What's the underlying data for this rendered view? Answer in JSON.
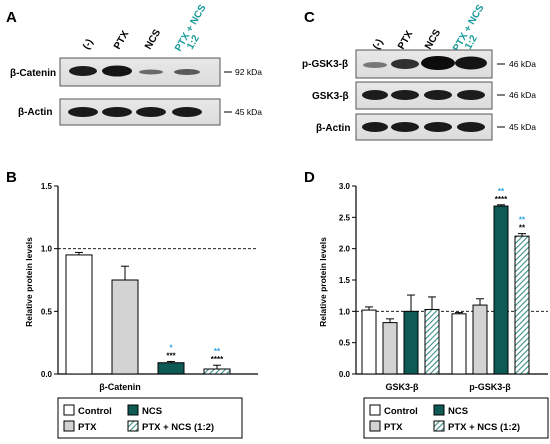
{
  "panels": {
    "a": "A",
    "b": "B",
    "c": "C",
    "d": "D"
  },
  "blot_a": {
    "lanes": [
      "(-)",
      "PTX",
      "NCS",
      "PTX + NCS",
      "1:2"
    ],
    "rows": [
      {
        "label": "β-Catenin",
        "kda": "92 kDa"
      },
      {
        "label": "β-Actin",
        "kda": "45 kDa"
      }
    ]
  },
  "blot_c": {
    "lanes": [
      "(-)",
      "PTX",
      "NCS",
      "PTX + NCS",
      "1:2"
    ],
    "rows": [
      {
        "label": "p-GSK3-β",
        "kda": "46 kDa"
      },
      {
        "label": "GSK3-β",
        "kda": "46 kDa"
      },
      {
        "label": "β-Actin",
        "kda": "45 kDa"
      }
    ]
  },
  "colors": {
    "control": "#ffffff",
    "ptx": "#d3d3d3",
    "ncs": "#0e5b55",
    "combo_hatch": "#3d8e88",
    "sig_blue": "#29a3e0"
  },
  "chart_data": [
    {
      "type": "bar",
      "panel": "B",
      "categories": [
        "β-Catenin"
      ],
      "ylabel": "Relative protein levels",
      "ylim": [
        0,
        1.5
      ],
      "yticks": [
        "0.0",
        "0.5",
        "1.0",
        "1.5"
      ],
      "reference_line": 1.0,
      "series": [
        {
          "name": "Control",
          "values": [
            0.95
          ],
          "err": [
            0.02
          ],
          "sig_blue": "",
          "sig_black": ""
        },
        {
          "name": "PTX",
          "values": [
            0.75
          ],
          "err": [
            0.11
          ],
          "sig_blue": "",
          "sig_black": ""
        },
        {
          "name": "NCS",
          "values": [
            0.09
          ],
          "err": [
            0.01
          ],
          "sig_blue": "*",
          "sig_black": "***"
        },
        {
          "name": "PTX + NCS (1:2)",
          "values": [
            0.04
          ],
          "err": [
            0.03
          ],
          "sig_blue": "**",
          "sig_black": "****"
        }
      ],
      "legend": [
        "Control",
        "NCS",
        "PTX",
        "PTX + NCS (1:2)"
      ]
    },
    {
      "type": "bar",
      "panel": "D",
      "categories": [
        "GSK3-β",
        "p-GSK3-β"
      ],
      "ylabel": "Relative protein levels",
      "ylim": [
        0,
        3.0
      ],
      "yticks": [
        "0.0",
        "0.5",
        "1.0",
        "1.5",
        "2.0",
        "2.5",
        "3.0"
      ],
      "reference_line": 1.0,
      "series": [
        {
          "name": "Control",
          "values": [
            1.02,
            0.96
          ],
          "err": [
            0.05,
            0.02
          ],
          "sig_blue": [
            "",
            ""
          ],
          "sig_black": [
            "",
            ""
          ]
        },
        {
          "name": "PTX",
          "values": [
            0.82,
            1.1
          ],
          "err": [
            0.06,
            0.1
          ],
          "sig_blue": [
            "",
            ""
          ],
          "sig_black": [
            "",
            ""
          ]
        },
        {
          "name": "NCS",
          "values": [
            1.0,
            2.68
          ],
          "err": [
            0.26,
            0.02
          ],
          "sig_blue": [
            "",
            "**"
          ],
          "sig_black": [
            "",
            "****"
          ]
        },
        {
          "name": "PTX + NCS (1:2)",
          "values": [
            1.03,
            2.2
          ],
          "err": [
            0.2,
            0.04
          ],
          "sig_blue": [
            "",
            "**"
          ],
          "sig_black": [
            "",
            "**"
          ]
        }
      ],
      "legend": [
        "Control",
        "NCS",
        "PTX",
        "PTX + NCS (1:2)"
      ]
    }
  ]
}
